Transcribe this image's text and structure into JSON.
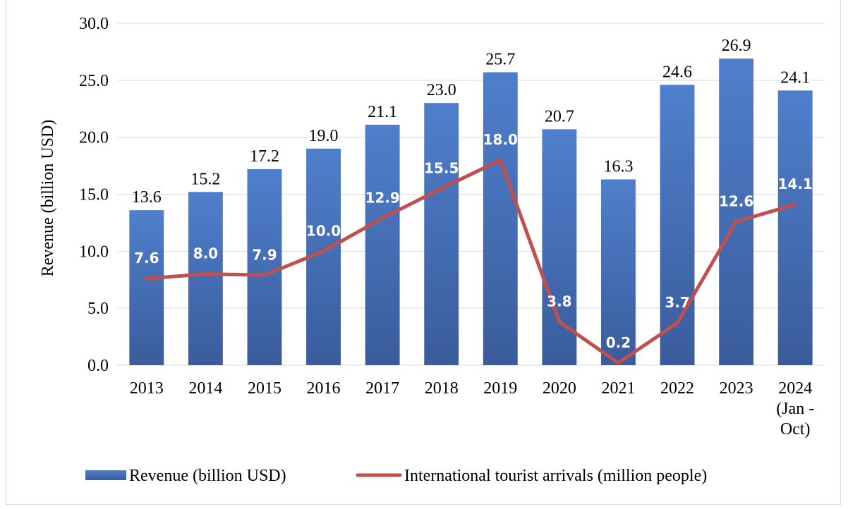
{
  "chart_data": {
    "type": "bar",
    "title": "",
    "ylabel": "Revenue (billion USD)",
    "xlabel": "",
    "ylim": [
      0,
      30
    ],
    "yticks": [
      "0.0",
      "5.0",
      "10.0",
      "15.0",
      "20.0",
      "25.0",
      "30.0"
    ],
    "grid": true,
    "legend_position": "bottom",
    "categories": [
      [
        "2013"
      ],
      [
        "2014"
      ],
      [
        "2015"
      ],
      [
        "2016"
      ],
      [
        "2017"
      ],
      [
        "2018"
      ],
      [
        "2019"
      ],
      [
        "2020"
      ],
      [
        "2021"
      ],
      [
        "2022"
      ],
      [
        "2023"
      ],
      [
        "2024",
        "(Jan -",
        "Oct)"
      ]
    ],
    "series": [
      {
        "name": "Revenue (billion USD)",
        "kind": "bar",
        "color": "#4472C4",
        "values": [
          13.6,
          15.2,
          17.2,
          19.0,
          21.1,
          23.0,
          25.7,
          20.7,
          16.3,
          24.6,
          26.9,
          24.1
        ],
        "labels": [
          "13.6",
          "15.2",
          "17.2",
          "19.0",
          "21.1",
          "23.0",
          "25.7",
          "20.7",
          "16.3",
          "24.6",
          "26.9",
          "24.1"
        ]
      },
      {
        "name": "International tourist arrivals (million people)",
        "kind": "line",
        "color": "#C0504D",
        "values": [
          7.6,
          8.0,
          7.9,
          10.0,
          12.9,
          15.5,
          18.0,
          3.8,
          0.2,
          3.7,
          12.6,
          14.1
        ],
        "labels": [
          "7.6",
          "8.0",
          "7.9",
          "10.0",
          "12.9",
          "15.5",
          "18.0",
          "3.8",
          "0.2",
          "3.7",
          "12.6",
          "14.1"
        ]
      }
    ]
  }
}
